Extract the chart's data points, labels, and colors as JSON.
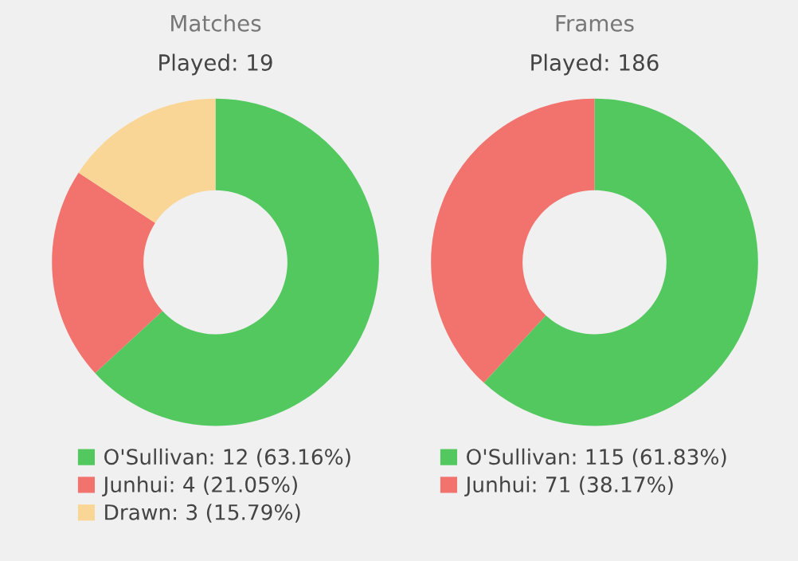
{
  "chart_data": [
    {
      "type": "donut",
      "title": "Matches",
      "subtitle": "Played: 19",
      "categories": [
        "O'Sullivan",
        "Junhui",
        "Drawn"
      ],
      "values": [
        12,
        4,
        3
      ],
      "colors": [
        "#52c85f",
        "#f2736d",
        "#fad696"
      ],
      "value_labels": [
        "12 (63.16%)",
        "4 (21.05%)",
        "3 (15.79%)"
      ],
      "legend": "bottom"
    },
    {
      "type": "donut",
      "title": "Frames",
      "subtitle": "Played: 186",
      "categories": [
        "O'Sullivan",
        "Junhui"
      ],
      "values": [
        115,
        71
      ],
      "colors": [
        "#52c85f",
        "#f2736d"
      ],
      "value_labels": [
        "115 (61.83%)",
        "71 (38.17%)"
      ],
      "legend": "bottom"
    }
  ]
}
